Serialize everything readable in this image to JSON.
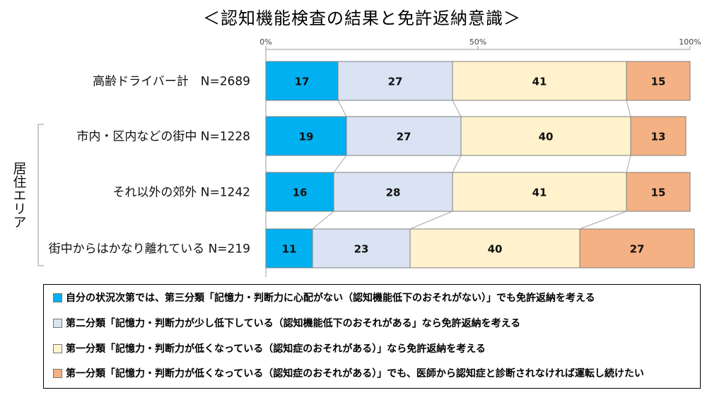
{
  "chart_data": {
    "type": "bar",
    "orientation": "horizontal",
    "stacked": true,
    "percent": true,
    "title": "＜認知機能検査の結果と免許返納意識＞",
    "xlim": [
      0,
      100
    ],
    "x_ticks": [
      "0%",
      "50%",
      "100%"
    ],
    "group_label": "居住エリア",
    "categories": [
      "高齢ドライバー計　N=2689",
      "市内・区内などの街中 N=1228",
      "それ以外の郊外 N=1242",
      "街中からはかなり離れている N=219"
    ],
    "series": [
      {
        "name": "自分の状況次第では、第三分類「記憶力・判断力に心配がない（認知機能低下のおそれがない）」でも免許返納を考える",
        "color": "#00b0f0",
        "values": [
          17,
          19,
          16,
          11
        ]
      },
      {
        "name": "第二分類「記憶力・判断力が少し低下している（認知機能低下のおそれがある」なら免許返納を考える",
        "color": "#dae3f3",
        "values": [
          27,
          27,
          28,
          23
        ]
      },
      {
        "name": "第一分類「記憶力・判断力が低くなっている（認知症のおそれがある）」なら免許返納を考える",
        "color": "#fff2cc",
        "values": [
          41,
          40,
          41,
          40
        ]
      },
      {
        "name": "第一分類「記憶力・判断力が低くなっている（認知症のおそれがある）」でも、医師から認知症と診断されなければ運転し続けたい",
        "color": "#f4b183",
        "values": [
          15,
          13,
          15,
          27
        ]
      }
    ],
    "legend_position": "bottom",
    "grid": false
  }
}
